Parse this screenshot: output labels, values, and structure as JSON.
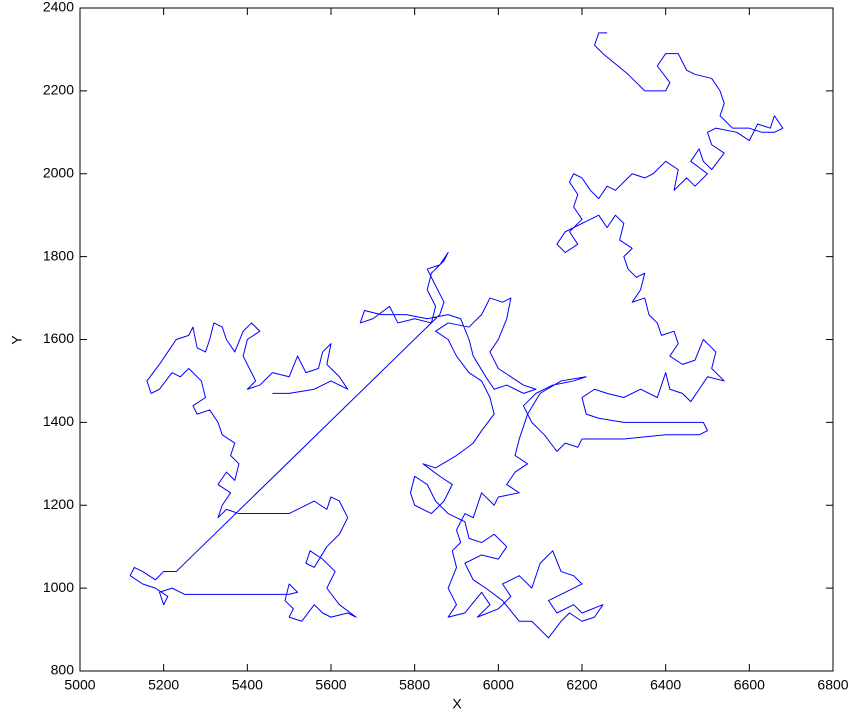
{
  "chart_data": {
    "type": "line",
    "xlabel": "X",
    "ylabel": "Y",
    "color": "#0000ff",
    "xlim": [
      5000,
      6800
    ],
    "ylim": [
      800,
      2400
    ],
    "xticks": [
      5000,
      5200,
      5400,
      5600,
      5800,
      6000,
      6200,
      6400,
      6600,
      6800
    ],
    "yticks": [
      800,
      1000,
      1200,
      1400,
      1600,
      1800,
      2000,
      2200,
      2400
    ],
    "x": [
      6260,
      6240,
      6230,
      6250,
      6310,
      6350,
      6400,
      6410,
      6380,
      6400,
      6430,
      6450,
      6470,
      6510,
      6530,
      6540,
      6530,
      6560,
      6600,
      6630,
      6660,
      6680,
      6660,
      6650,
      6620,
      6600,
      6570,
      6520,
      6500,
      6510,
      6540,
      6510,
      6490,
      6480,
      6460,
      6500,
      6470,
      6450,
      6420,
      6430,
      6400,
      6370,
      6350,
      6320,
      6300,
      6280,
      6260,
      6240,
      6220,
      6200,
      6180,
      6170,
      6190,
      6180,
      6200,
      6170,
      6190,
      6160,
      6140,
      6160,
      6200,
      6240,
      6260,
      6280,
      6300,
      6290,
      6320,
      6300,
      6310,
      6330,
      6350,
      6340,
      6320,
      6350,
      6360,
      6380,
      6390,
      6420,
      6430,
      6410,
      6440,
      6470,
      6490,
      6520,
      6510,
      6540,
      6500,
      6480,
      6460,
      6440,
      6410,
      6400,
      6380,
      6340,
      6300,
      6260,
      6230,
      6200,
      6210,
      6240,
      6300,
      6420,
      6490,
      6500,
      6480,
      6400,
      6300,
      6250,
      6200,
      6190,
      6160,
      6140,
      6110,
      6080,
      6060,
      6090,
      6130,
      6180,
      6210,
      6150,
      6100,
      6070,
      6050,
      6040,
      6070,
      6040,
      6020,
      6050,
      6000,
      5990,
      5960,
      5950,
      5940,
      5920,
      5900,
      5910,
      5890,
      5900,
      5880,
      5900,
      5880,
      5920,
      5960,
      5980,
      5950,
      6000,
      6030,
      6010,
      6050,
      6080,
      6100,
      6130,
      6150,
      6180,
      6200,
      6160,
      6120,
      6140,
      6180,
      6200,
      6250,
      6230,
      6200,
      6170,
      6150,
      6120,
      6100,
      6080,
      6050,
      6010,
      5970,
      5940,
      5920,
      5960,
      6000,
      6020,
      5990,
      5960,
      5930,
      5920,
      5880,
      5850,
      5830,
      5800,
      5790,
      5800,
      5840,
      5870,
      5890,
      5860,
      5820,
      5850,
      5900,
      5940,
      5960,
      5990,
      5980,
      5960,
      5930,
      5900,
      5880,
      5850,
      5880,
      5930,
      5960,
      5980,
      6010,
      6030,
      6020,
      6000,
      5980,
      6000,
      6030,
      6060,
      6090,
      6060,
      6020,
      5990,
      5970,
      5940,
      5930,
      5910,
      5880,
      5830,
      5780,
      5720,
      5680,
      5670,
      5700,
      5740,
      5760,
      5800,
      5840,
      5850,
      5830,
      5840,
      5870,
      5880,
      5860,
      5830,
      5850,
      5870,
      5860,
      5850,
      5230,
      5200,
      5180,
      5150,
      5130,
      5120,
      5150,
      5180,
      5210,
      5200,
      5190,
      5220,
      5250,
      5350,
      5500,
      5520,
      5500,
      5490,
      5510,
      5500,
      5530,
      5560,
      5580,
      5600,
      5640,
      5660,
      5620,
      5590,
      5610,
      5580,
      5550,
      5540,
      5560,
      5590,
      5620,
      5640,
      5620,
      5600,
      5590,
      5560,
      5500,
      5440,
      5380,
      5350,
      5330,
      5340,
      5360,
      5330,
      5350,
      5370,
      5380,
      5360,
      5370,
      5340,
      5330,
      5310,
      5280,
      5270,
      5300,
      5290,
      5260,
      5240,
      5220,
      5190,
      5170,
      5160,
      5190,
      5210,
      5230,
      5260,
      5270,
      5280,
      5300,
      5310,
      5320,
      5340,
      5350,
      5370,
      5390,
      5410,
      5430,
      5400,
      5390,
      5410,
      5420,
      5400,
      5430,
      5460,
      5500,
      5520,
      5540,
      5570,
      5580,
      5600,
      5590,
      5620,
      5640,
      5600,
      5560,
      5500,
      5460
    ],
    "y": [
      2340,
      2340,
      2310,
      2290,
      2240,
      2200,
      2200,
      2220,
      2260,
      2290,
      2290,
      2250,
      2240,
      2230,
      2200,
      2170,
      2140,
      2110,
      2110,
      2100,
      2100,
      2110,
      2140,
      2110,
      2120,
      2080,
      2100,
      2110,
      2100,
      2070,
      2050,
      2010,
      2030,
      2060,
      2030,
      2000,
      1970,
      1990,
      1960,
      2010,
      2030,
      2000,
      1990,
      2000,
      1980,
      1960,
      1970,
      1940,
      1960,
      1990,
      2000,
      1980,
      1950,
      1920,
      1890,
      1860,
      1830,
      1810,
      1830,
      1860,
      1880,
      1900,
      1870,
      1900,
      1880,
      1840,
      1820,
      1800,
      1770,
      1750,
      1760,
      1720,
      1690,
      1700,
      1660,
      1640,
      1610,
      1620,
      1590,
      1560,
      1540,
      1550,
      1600,
      1570,
      1530,
      1500,
      1510,
      1480,
      1450,
      1470,
      1480,
      1520,
      1460,
      1480,
      1460,
      1470,
      1480,
      1460,
      1420,
      1410,
      1400,
      1400,
      1400,
      1380,
      1370,
      1370,
      1360,
      1360,
      1360,
      1340,
      1350,
      1330,
      1370,
      1400,
      1440,
      1470,
      1490,
      1500,
      1510,
      1500,
      1470,
      1420,
      1360,
      1320,
      1300,
      1280,
      1250,
      1230,
      1220,
      1200,
      1230,
      1200,
      1170,
      1180,
      1140,
      1110,
      1090,
      1050,
      1000,
      960,
      930,
      940,
      990,
      960,
      930,
      950,
      980,
      1010,
      1030,
      1000,
      1060,
      1090,
      1040,
      1030,
      1010,
      990,
      970,
      940,
      960,
      940,
      960,
      930,
      920,
      940,
      920,
      880,
      900,
      920,
      920,
      970,
      1000,
      1020,
      1060,
      1080,
      1070,
      1100,
      1130,
      1110,
      1120,
      1160,
      1180,
      1210,
      1250,
      1270,
      1230,
      1200,
      1180,
      1210,
      1250,
      1270,
      1300,
      1290,
      1320,
      1350,
      1380,
      1420,
      1460,
      1500,
      1520,
      1560,
      1600,
      1620,
      1640,
      1630,
      1660,
      1700,
      1690,
      1700,
      1650,
      1600,
      1570,
      1530,
      1510,
      1490,
      1480,
      1470,
      1490,
      1480,
      1510,
      1560,
      1600,
      1650,
      1660,
      1650,
      1660,
      1660,
      1670,
      1640,
      1650,
      1680,
      1640,
      1650,
      1640,
      1680,
      1720,
      1760,
      1790,
      1810,
      1780,
      1770,
      1730,
      1690,
      1660,
      1650,
      1040,
      1040,
      1020,
      1040,
      1050,
      1030,
      1010,
      1000,
      980,
      960,
      990,
      1000,
      985,
      985,
      985,
      990,
      1010,
      970,
      950,
      930,
      920,
      960,
      940,
      930,
      940,
      930,
      960,
      1000,
      1040,
      1070,
      1090,
      1060,
      1050,
      1100,
      1130,
      1170,
      1210,
      1220,
      1190,
      1210,
      1180,
      1180,
      1180,
      1190,
      1170,
      1200,
      1230,
      1250,
      1280,
      1260,
      1300,
      1320,
      1350,
      1370,
      1400,
      1430,
      1420,
      1440,
      1460,
      1500,
      1530,
      1510,
      1520,
      1480,
      1470,
      1500,
      1540,
      1570,
      1600,
      1610,
      1630,
      1580,
      1570,
      1600,
      1640,
      1630,
      1600,
      1570,
      1620,
      1640,
      1620,
      1600,
      1560,
      1520,
      1500,
      1480,
      1490,
      1520,
      1510,
      1560,
      1520,
      1530,
      1570,
      1590,
      1540,
      1510,
      1480,
      1500,
      1480,
      1470,
      1470
    ]
  }
}
